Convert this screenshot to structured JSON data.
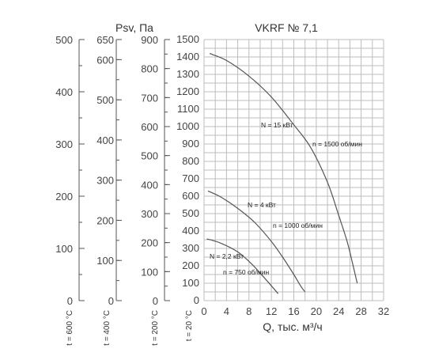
{
  "chart_data": {
    "type": "line",
    "title": "VKRF № 7,1",
    "ylabel": "Psv, Па",
    "xlabel": "Q, тыс. м³/ч",
    "x_ticks": [
      0,
      4,
      8,
      12,
      16,
      20,
      24,
      28,
      32
    ],
    "y_ticks": [
      0,
      100,
      200,
      300,
      400,
      500,
      600,
      700,
      800,
      900,
      1000,
      1100,
      1200,
      1300,
      1400,
      1500
    ],
    "xlim": [
      0,
      32
    ],
    "ylim": [
      0,
      1500
    ],
    "grid": true,
    "temperature_axes": [
      {
        "label": "t = 600 °C",
        "ticks": [
          0,
          100,
          200,
          300,
          400,
          500
        ],
        "max": 500
      },
      {
        "label": "t = 400 °C",
        "ticks": [
          0,
          100,
          200,
          300,
          400,
          500,
          600,
          650
        ],
        "max": 650
      },
      {
        "label": "t = 200 °C",
        "ticks": [
          0,
          100,
          200,
          300,
          400,
          500,
          600,
          700,
          800,
          900
        ],
        "max": 900
      },
      {
        "label": "t = 20 °C"
      }
    ],
    "series": [
      {
        "speed_label": "n = 1500 об/мин",
        "power_label": "N = 15 кВт",
        "x": [
          1,
          4,
          8,
          12,
          16,
          19,
          22,
          24,
          25.5,
          26.5,
          27.3
        ],
        "y": [
          1420,
          1380,
          1290,
          1170,
          1010,
          880,
          680,
          490,
          340,
          210,
          100
        ]
      },
      {
        "speed_label": "n = 1000 об/мин",
        "power_label": "N = 4 кВт",
        "x": [
          0.7,
          3,
          6,
          9,
          12,
          14,
          16,
          17.2,
          18
        ],
        "y": [
          630,
          595,
          530,
          450,
          340,
          250,
          150,
          85,
          50
        ]
      },
      {
        "speed_label": "n = 750 об/мин",
        "power_label": "N = 2,2 кВт",
        "x": [
          0.5,
          3,
          6,
          8.5,
          10.5,
          12,
          13.2
        ],
        "y": [
          355,
          330,
          280,
          210,
          140,
          85,
          40
        ]
      }
    ]
  }
}
